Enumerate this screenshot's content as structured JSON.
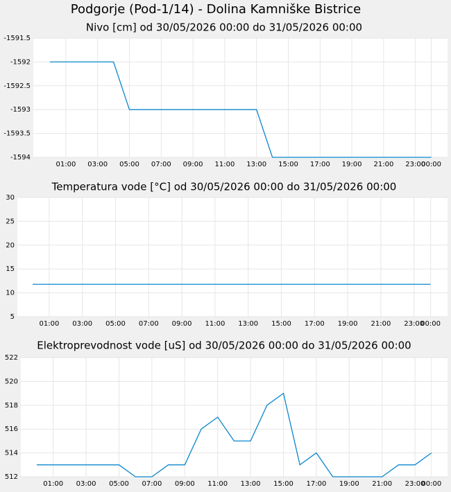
{
  "title": "Podgorje (Pod-1/14) - Dolina Kamniške Bistrice",
  "chart_data": [
    {
      "type": "line",
      "title": "Nivo [cm] od 30/05/2026 00:00 do 31/05/2026 00:00",
      "categories": [
        null,
        "01:00",
        null,
        "03:00",
        null,
        "05:00",
        null,
        "07:00",
        null,
        "09:00",
        null,
        "11:00",
        null,
        "13:00",
        null,
        "15:00",
        null,
        "17:00",
        null,
        "19:00",
        null,
        "21:00",
        null,
        "23:00",
        "00:00"
      ],
      "series": [
        {
          "color": "#0b86cc",
          "values": [
            -1592,
            -1592,
            -1592,
            -1592,
            -1592,
            -1593,
            -1593,
            -1593,
            -1593,
            -1593,
            -1593,
            -1593,
            -1593,
            -1593,
            -1594,
            -1594,
            -1594,
            -1594,
            -1594,
            -1594,
            -1594,
            -1594,
            -1594,
            -1594,
            -1594
          ]
        }
      ],
      "ylim": [
        -1594,
        -1591.5
      ],
      "yticks": [
        -1594,
        -1593.5,
        -1593,
        -1592.5,
        -1592,
        -1591.5
      ],
      "grid": true
    },
    {
      "type": "line",
      "title": "Temperatura vode [°C] od 30/05/2026 00:00 do 31/05/2026 00:00",
      "categories": [
        null,
        "01:00",
        null,
        "03:00",
        null,
        "05:00",
        null,
        "07:00",
        null,
        "09:00",
        null,
        "11:00",
        null,
        "13:00",
        null,
        "15:00",
        null,
        "17:00",
        null,
        "19:00",
        null,
        "21:00",
        null,
        "23:00",
        "00:00"
      ],
      "series": [
        {
          "color": "#0b86cc",
          "values": [
            11.8,
            11.8,
            11.8,
            11.8,
            11.8,
            11.8,
            11.8,
            11.8,
            11.8,
            11.8,
            11.8,
            11.8,
            11.8,
            11.8,
            11.8,
            11.8,
            11.8,
            11.8,
            11.8,
            11.8,
            11.8,
            11.8,
            11.8,
            11.8,
            11.8
          ]
        }
      ],
      "ylim": [
        5,
        30
      ],
      "yticks": [
        5,
        10,
        15,
        20,
        25,
        30
      ],
      "grid": true
    },
    {
      "type": "line",
      "title": "Elektroprevodnost vode [uS] od 30/05/2026 00:00 do 31/05/2026 00:00",
      "categories": [
        null,
        "01:00",
        null,
        "03:00",
        null,
        "05:00",
        null,
        "07:00",
        null,
        "09:00",
        null,
        "11:00",
        null,
        "13:00",
        null,
        "15:00",
        null,
        "17:00",
        null,
        "19:00",
        null,
        "21:00",
        null,
        "23:00",
        "00:00"
      ],
      "series": [
        {
          "color": "#0b86cc",
          "values": [
            513,
            513,
            513,
            513,
            513,
            513,
            512,
            512,
            513,
            513,
            516,
            517,
            515,
            515,
            518,
            519,
            513,
            514,
            512,
            512,
            512,
            512,
            513,
            513,
            514
          ]
        }
      ],
      "ylim": [
        512,
        522
      ],
      "yticks": [
        512,
        514,
        516,
        518,
        520,
        522
      ],
      "grid": true
    }
  ]
}
